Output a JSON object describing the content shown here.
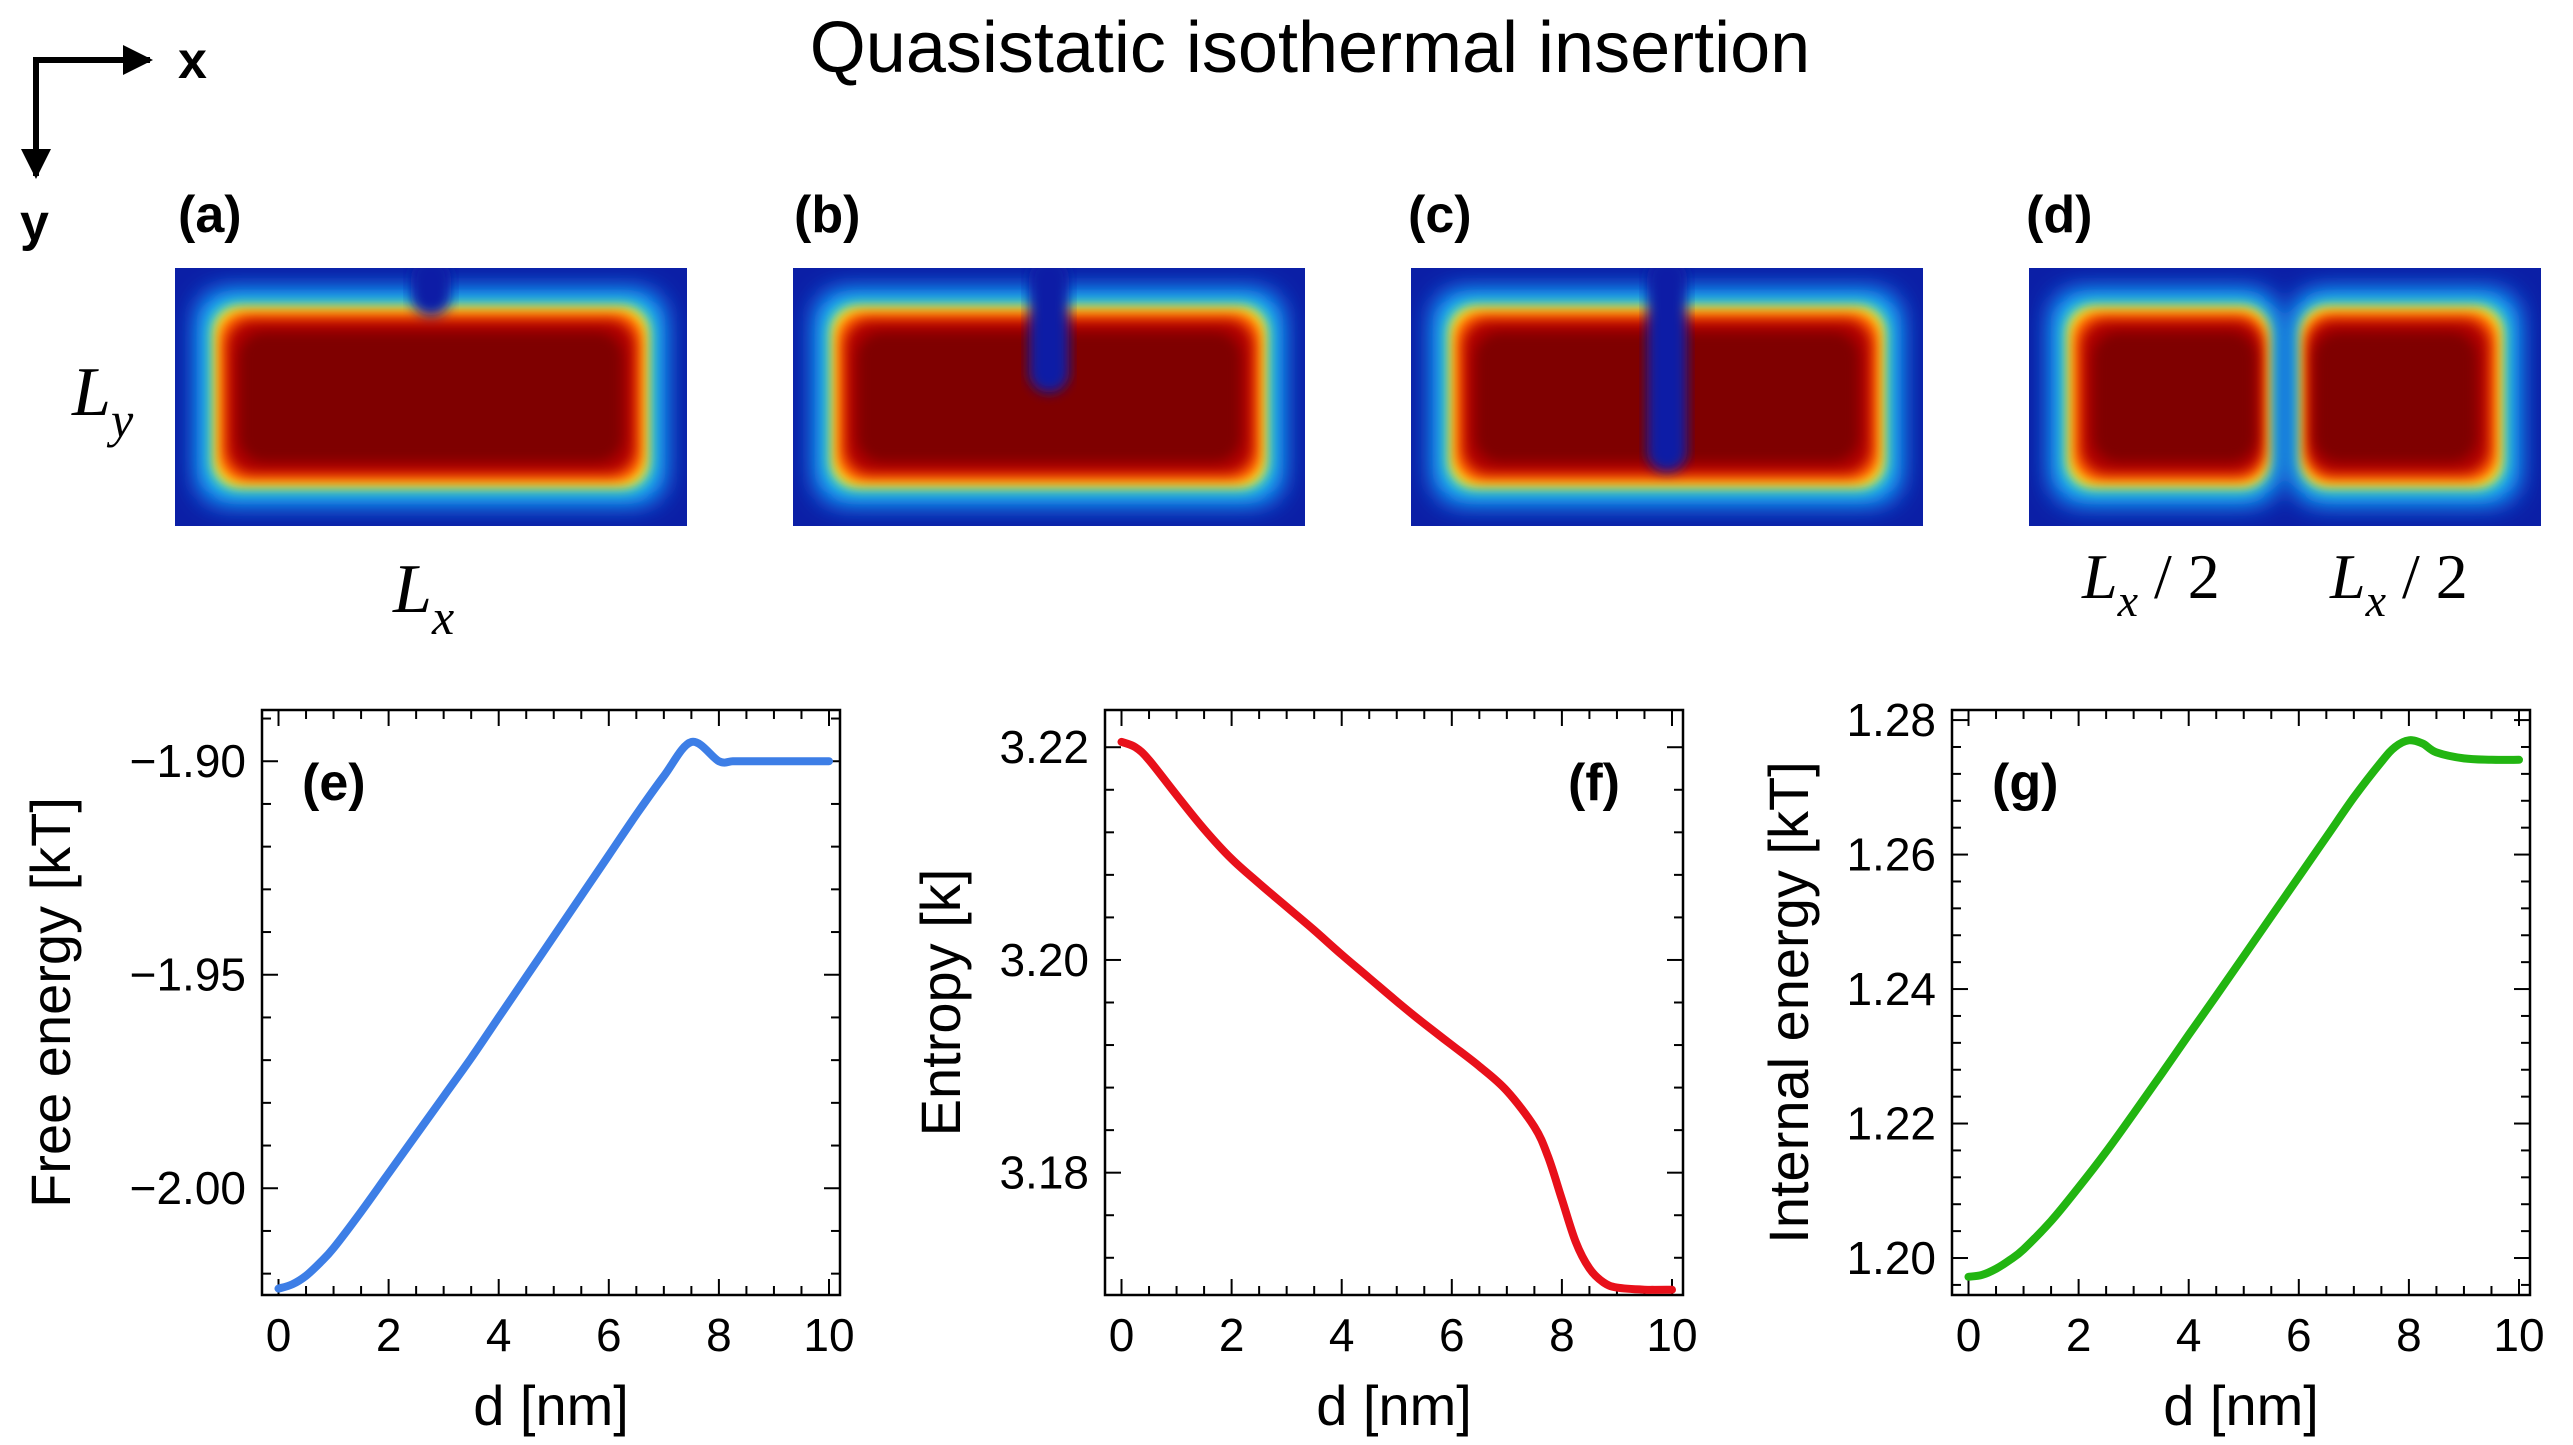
{
  "title": "Quasistatic isothermal insertion",
  "axes_indicator": {
    "x_label": "x",
    "y_label": "y"
  },
  "density_panels": [
    {
      "label": "(a)",
      "notch_depth": 0.12
    },
    {
      "label": "(b)",
      "notch_depth": 0.48
    },
    {
      "label": "(c)",
      "notch_depth": 0.85
    },
    {
      "label": "(d)",
      "notch_depth": 1.0
    }
  ],
  "dimension_labels": {
    "ly_main": "L",
    "ly_sub": "y",
    "lx_main": "L",
    "lx_sub": "x",
    "half_main": "L",
    "half_sub": "x",
    "half_suffix": " / 2"
  },
  "colors": {
    "free_energy": "#3d7ee6",
    "entropy": "#e8101a",
    "internal_energy": "#22b511"
  },
  "chart_data": [
    {
      "type": "line",
      "panel_label": "(e)",
      "xlabel": "d [nm]",
      "ylabel": "Free energy [kT]",
      "xlim": [
        -0.3,
        10.2
      ],
      "ylim": [
        -2.025,
        -1.888
      ],
      "xticks": [
        0,
        2,
        4,
        6,
        8,
        10
      ],
      "xtick_labels": [
        "0",
        "2",
        "4",
        "6",
        "8",
        "10"
      ],
      "yticks": [
        -2.0,
        -1.95,
        -1.9
      ],
      "ytick_labels": [
        "−2.00",
        "−1.95",
        "−1.90"
      ],
      "color_key": "free_energy",
      "series": [
        {
          "x": [
            0,
            0.25,
            0.5,
            0.75,
            1,
            1.5,
            2,
            2.5,
            3,
            3.5,
            4,
            4.5,
            5,
            5.5,
            6,
            6.5,
            7,
            7.5,
            8,
            8.25,
            8.5,
            8.75,
            9,
            9.5,
            10
          ],
          "y": [
            -2.0235,
            -2.0225,
            -2.0205,
            -2.0175,
            -2.014,
            -2.0055,
            -1.9965,
            -1.9875,
            -1.9785,
            -1.9695,
            -1.96,
            -1.9505,
            -1.941,
            -1.9315,
            -1.922,
            -1.9125,
            -1.9035,
            -1.8955,
            -1.9,
            -1.9,
            -1.9,
            -1.9,
            -1.9,
            -1.9,
            -1.9
          ]
        }
      ]
    },
    {
      "type": "line",
      "panel_label": "(f)",
      "xlabel": "d [nm]",
      "ylabel": "Entropy [k]",
      "xlim": [
        -0.3,
        10.2
      ],
      "ylim": [
        3.1685,
        3.2235
      ],
      "xticks": [
        0,
        2,
        4,
        6,
        8,
        10
      ],
      "xtick_labels": [
        "0",
        "2",
        "4",
        "6",
        "8",
        "10"
      ],
      "yticks": [
        3.18,
        3.2,
        3.22
      ],
      "ytick_labels": [
        "3.18",
        "3.20",
        "3.22"
      ],
      "color_key": "entropy",
      "series": [
        {
          "x": [
            0,
            0.25,
            0.5,
            1,
            1.5,
            2,
            2.5,
            3,
            3.5,
            4,
            4.5,
            5,
            5.5,
            6,
            6.5,
            7,
            7.5,
            7.75,
            8,
            8.25,
            8.5,
            8.75,
            9,
            9.5,
            10
          ],
          "y": [
            3.2205,
            3.22,
            3.2188,
            3.2155,
            3.2123,
            3.2095,
            3.2072,
            3.205,
            3.2028,
            3.2005,
            3.1983,
            3.1961,
            3.194,
            3.192,
            3.19,
            3.1877,
            3.1843,
            3.1815,
            3.1775,
            3.1735,
            3.171,
            3.1697,
            3.1692,
            3.169,
            3.169
          ]
        }
      ]
    },
    {
      "type": "line",
      "panel_label": "(g)",
      "xlabel": "d [nm]",
      "ylabel": "Internal energy [kT]",
      "xlim": [
        -0.3,
        10.2
      ],
      "ylim": [
        1.1945,
        1.2815
      ],
      "xticks": [
        0,
        2,
        4,
        6,
        8,
        10
      ],
      "xtick_labels": [
        "0",
        "2",
        "4",
        "6",
        "8",
        "10"
      ],
      "yticks": [
        1.2,
        1.22,
        1.24,
        1.26,
        1.28
      ],
      "ytick_labels": [
        "1.20",
        "1.22",
        "1.24",
        "1.26",
        "1.28"
      ],
      "color_key": "internal_energy",
      "series": [
        {
          "x": [
            0,
            0.25,
            0.5,
            0.75,
            1,
            1.5,
            2,
            2.5,
            3,
            3.5,
            4,
            4.5,
            5,
            5.5,
            6,
            6.5,
            7,
            7.5,
            7.75,
            8,
            8.25,
            8.5,
            9,
            9.5,
            10
          ],
          "y": [
            1.1972,
            1.1975,
            1.1984,
            1.1997,
            1.2013,
            1.2055,
            1.2105,
            1.2158,
            1.2215,
            1.2273,
            1.2332,
            1.239,
            1.2449,
            1.2508,
            1.2567,
            1.2626,
            1.2685,
            1.2738,
            1.276,
            1.277,
            1.2765,
            1.2752,
            1.2743,
            1.2741,
            1.2741
          ]
        }
      ]
    }
  ]
}
